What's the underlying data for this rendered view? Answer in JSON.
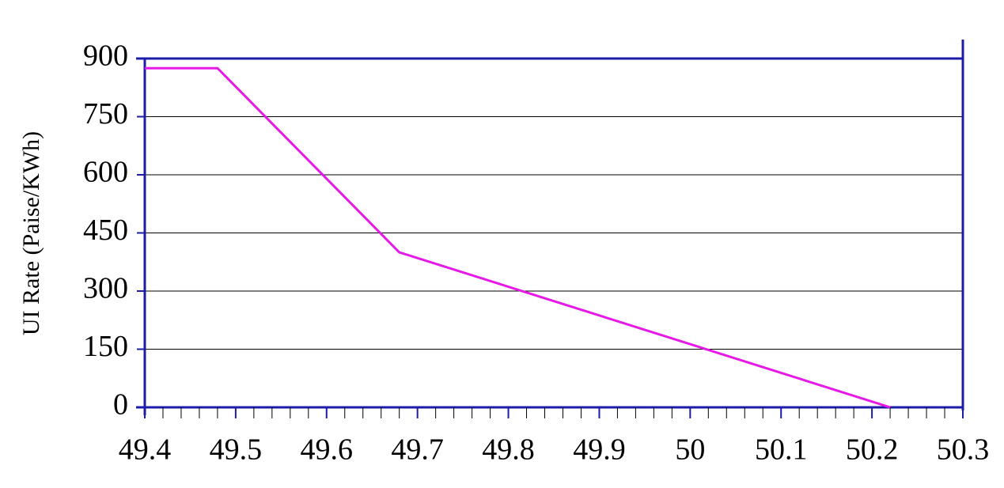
{
  "chart_data": {
    "type": "line",
    "y_label": "UI Rate (Paise/KWh)",
    "x": [
      49.4,
      49.48,
      49.68,
      50.22
    ],
    "series": [
      {
        "name": "UI Rate",
        "color": "#e619e6",
        "values": [
          875,
          875,
          400,
          0
        ]
      }
    ],
    "xlim": [
      49.4,
      50.3
    ],
    "xticks": [
      49.4,
      49.5,
      49.6,
      49.7,
      49.8,
      49.9,
      50,
      50.1,
      50.2,
      50.3
    ],
    "ylim": [
      0,
      900
    ],
    "yticks": [
      0,
      150,
      300,
      450,
      600,
      750,
      900
    ],
    "grid": true,
    "axis_color": "#1c1ca8"
  }
}
